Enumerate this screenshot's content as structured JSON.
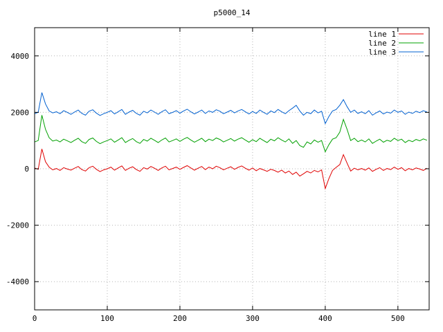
{
  "title": "p5000_14",
  "chart_data": {
    "type": "line",
    "title": "p5000_14",
    "xlabel": "",
    "ylabel": "",
    "xlim": [
      0,
      543
    ],
    "ylim": [
      -5000,
      5000
    ],
    "x_ticks": [
      0,
      100,
      200,
      300,
      400,
      500
    ],
    "y_ticks": [
      -4000,
      -2000,
      0,
      2000,
      4000
    ],
    "grid": true,
    "legend_position": "top-right",
    "x_start": 0,
    "x_step": 5,
    "series": [
      {
        "name": "line 1",
        "color": "#e00000",
        "values": [
          30,
          -20,
          700,
          250,
          60,
          -40,
          10,
          -60,
          40,
          -10,
          -50,
          20,
          80,
          -30,
          -80,
          40,
          90,
          -20,
          -100,
          -40,
          0,
          60,
          -50,
          30,
          100,
          -60,
          20,
          70,
          -30,
          -90,
          40,
          -10,
          80,
          20,
          -60,
          30,
          90,
          -40,
          10,
          60,
          -20,
          50,
          110,
          30,
          -50,
          20,
          80,
          -30,
          60,
          0,
          90,
          40,
          -40,
          20,
          70,
          -20,
          50,
          100,
          20,
          -50,
          30,
          -70,
          10,
          -40,
          -90,
          -20,
          -60,
          -120,
          -50,
          -150,
          -80,
          -200,
          -120,
          -260,
          -180,
          -90,
          -150,
          -60,
          -110,
          -40,
          -700,
          -350,
          -60,
          50,
          150,
          500,
          200,
          -80,
          20,
          -40,
          10,
          -50,
          30,
          -90,
          -20,
          40,
          -60,
          10,
          -30,
          60,
          -20,
          40,
          -70,
          10,
          -40,
          30,
          -10,
          -60,
          20
        ]
      },
      {
        "name": "line 2",
        "color": "#00a000",
        "values": [
          950,
          1000,
          1900,
          1400,
          1100,
          980,
          1020,
          950,
          1050,
          990,
          930,
          1010,
          1080,
          960,
          900,
          1040,
          1090,
          970,
          890,
          950,
          1000,
          1060,
          940,
          1020,
          1100,
          930,
          1010,
          1070,
          960,
          900,
          1040,
          980,
          1080,
          1010,
          930,
          1020,
          1090,
          950,
          1000,
          1060,
          970,
          1050,
          1110,
          1020,
          940,
          1010,
          1080,
          960,
          1050,
          1000,
          1090,
          1040,
          950,
          1010,
          1070,
          980,
          1050,
          1100,
          1020,
          940,
          1030,
          960,
          1080,
          1000,
          930,
          1050,
          990,
          1100,
          1020,
          950,
          1060,
          900,
          1000,
          820,
          760,
          950,
          880,
          1020,
          940,
          1000,
          600,
          850,
          1050,
          1100,
          1300,
          1750,
          1400,
          1000,
          1080,
          960,
          1020,
          950,
          1060,
          900,
          980,
          1050,
          940,
          1010,
          970,
          1080,
          1000,
          1050,
          930,
          1010,
          960,
          1040,
          990,
          1060,
          1010
        ]
      },
      {
        "name": "line 3",
        "color": "#0060d0",
        "values": [
          1950,
          2000,
          2700,
          2300,
          2050,
          1980,
          2020,
          1950,
          2060,
          2000,
          1930,
          2010,
          2080,
          1960,
          1900,
          2040,
          2090,
          1970,
          1890,
          1950,
          2000,
          2060,
          1940,
          2020,
          2100,
          1930,
          2010,
          2070,
          1960,
          1900,
          2040,
          1980,
          2080,
          2010,
          1930,
          2020,
          2090,
          1950,
          2000,
          2060,
          1970,
          2050,
          2110,
          2020,
          1940,
          2010,
          2080,
          1960,
          2050,
          2000,
          2090,
          2040,
          1950,
          2010,
          2070,
          1980,
          2050,
          2100,
          2020,
          1940,
          2030,
          1960,
          2080,
          2000,
          1930,
          2050,
          1990,
          2100,
          2020,
          1950,
          2060,
          2150,
          2250,
          2050,
          1900,
          2000,
          1950,
          2080,
          1980,
          2040,
          1600,
          1850,
          2050,
          2100,
          2250,
          2450,
          2200,
          2000,
          2080,
          1960,
          2020,
          1950,
          2060,
          1900,
          1980,
          2050,
          1940,
          2010,
          1970,
          2080,
          2000,
          2050,
          1930,
          2010,
          1960,
          2040,
          1990,
          2060,
          2010
        ]
      }
    ]
  },
  "colors": {
    "grid": "#b4b4b4",
    "border": "#000000",
    "text": "#000000",
    "background": "#ffffff"
  }
}
